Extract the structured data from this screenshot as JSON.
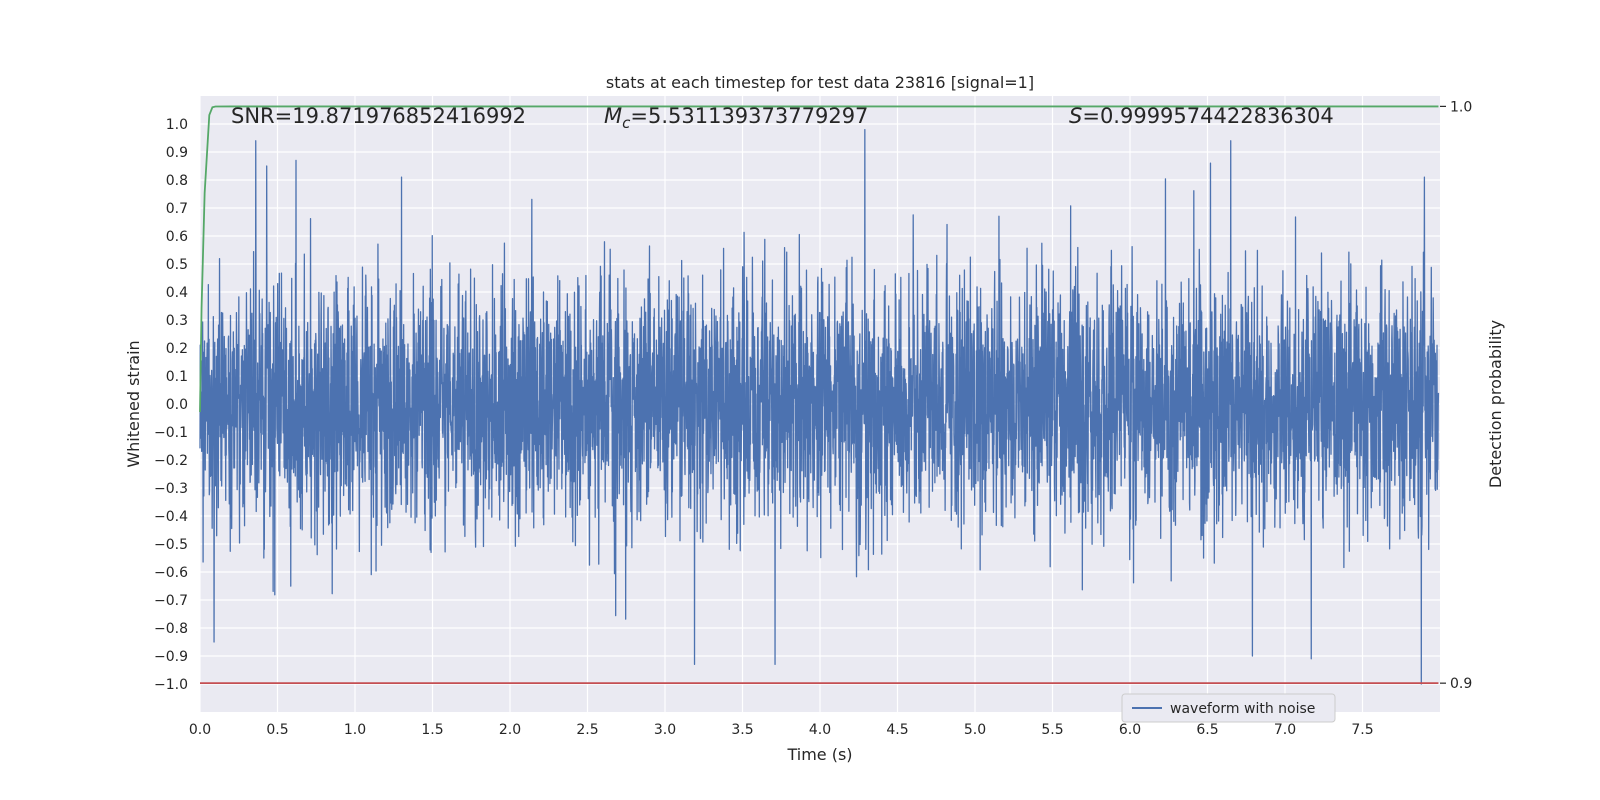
{
  "chart_data": {
    "type": "line",
    "title": "stats at each timestep for test data 23816 [signal=1]",
    "xlabel": "Time (s)",
    "ylabel": "Whitened strain",
    "y2label": "Detection probability",
    "xlim": [
      0.0,
      8.0
    ],
    "ylim": [
      -1.1,
      1.1
    ],
    "y2lim": [
      0.895,
      1.0018
    ],
    "x_ticks": [
      "0.0",
      "0.5",
      "1.0",
      "1.5",
      "2.0",
      "2.5",
      "3.0",
      "3.5",
      "4.0",
      "4.5",
      "5.0",
      "5.5",
      "6.0",
      "6.5",
      "7.0",
      "7.5"
    ],
    "y_ticks": [
      "1.0",
      "0.9",
      "0.8",
      "0.7",
      "0.6",
      "0.5",
      "0.4",
      "0.3",
      "0.2",
      "0.1",
      "0.0",
      "−0.1",
      "−0.2",
      "−0.3",
      "−0.4",
      "−0.5",
      "−0.6",
      "−0.7",
      "−0.8",
      "−0.9",
      "−1.0"
    ],
    "y2_ticks": [
      "1.0",
      "0.9"
    ],
    "grid": true,
    "legend": {
      "position": "lower-right",
      "entries": [
        "waveform with noise"
      ]
    },
    "annotations": {
      "snr": "SNR=19.871976852416992",
      "mc_symbol": "M",
      "mc_subscript": "c",
      "mc_value": "=5.531139373779297",
      "s_symbol": "S",
      "s_value": "=0.9999574422836304"
    },
    "series": [
      {
        "name": "waveform with noise",
        "color": "#4c72b0",
        "kind": "noise",
        "x_range": [
          0.0,
          7.99
        ],
        "typical_amplitude": 0.45,
        "y_max": 0.98,
        "y_min": -1.0,
        "peaks": [
          [
            0.36,
            0.94
          ],
          [
            0.43,
            0.85
          ],
          [
            0.62,
            0.87
          ],
          [
            1.3,
            0.81
          ],
          [
            4.29,
            0.98
          ],
          [
            6.65,
            0.94
          ],
          [
            6.52,
            0.86
          ],
          [
            7.9,
            0.81
          ],
          [
            3.19,
            -0.93
          ],
          [
            3.71,
            -0.93
          ],
          [
            6.79,
            -0.9
          ],
          [
            7.17,
            -0.91
          ],
          [
            7.88,
            -1.0
          ],
          [
            0.09,
            -0.85
          ]
        ]
      },
      {
        "name": "",
        "color": "#55a868",
        "kind": "line",
        "axis": "right",
        "x": [
          0.0,
          0.01,
          0.03,
          0.05,
          0.06,
          0.08,
          0.1,
          0.2,
          1.0,
          4.0,
          7.99
        ],
        "values": [
          0.947,
          0.965,
          0.985,
          0.994,
          0.9985,
          0.99985,
          0.99998,
          0.99999,
          0.99999,
          0.99999,
          0.99999
        ]
      },
      {
        "name": "",
        "color": "#c44e52",
        "kind": "line",
        "axis": "right",
        "x": [
          0.0,
          7.99
        ],
        "values": [
          0.9,
          0.9
        ]
      }
    ]
  }
}
